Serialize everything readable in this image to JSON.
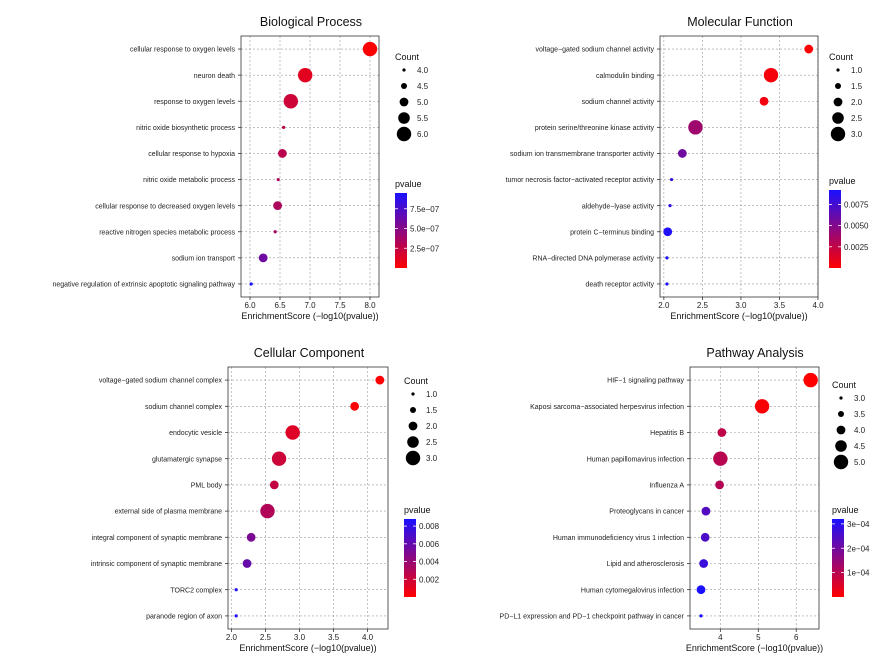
{
  "colors": {
    "low_p": "#ff0000",
    "high_p": "#1a10ff",
    "grid": "#9a9a9a",
    "axis": "#333333"
  },
  "chart_data": [
    {
      "type": "scatter",
      "title": "Biological Process",
      "xlabel": "EnrichmentScore (−log10(pvalue))",
      "xlim": [
        5.85,
        8.15
      ],
      "xticks": [
        {
          "v": 6.0,
          "label": "6.0"
        },
        {
          "v": 6.5,
          "label": "6.5"
        },
        {
          "v": 7.0,
          "label": "7.0"
        },
        {
          "v": 7.5,
          "label": "7.5"
        },
        {
          "v": 8.0,
          "label": "8.0"
        }
      ],
      "size_legend": {
        "title": "Count",
        "entries": [
          {
            "v": 4.0,
            "label": "4.0"
          },
          {
            "v": 4.5,
            "label": "4.5"
          },
          {
            "v": 5.0,
            "label": "5.0"
          },
          {
            "v": 5.5,
            "label": "5.5"
          },
          {
            "v": 6.0,
            "label": "6.0"
          }
        ]
      },
      "color_legend": {
        "title": "pvalue",
        "range": [
          0,
          9.5e-07
        ],
        "ticks": [
          {
            "v": 7.5e-07,
            "label": "7.5e−07"
          },
          {
            "v": 5e-07,
            "label": "5.0e−07"
          },
          {
            "v": 2.5e-07,
            "label": "2.5e−07"
          }
        ]
      },
      "points": [
        {
          "term": "cellular response to oxygen levels",
          "x": 8.0,
          "count": 6,
          "pvalue": 1e-08
        },
        {
          "term": "neuron death",
          "x": 6.92,
          "count": 6,
          "pvalue": 1.2e-07
        },
        {
          "term": "response to oxygen levels",
          "x": 6.68,
          "count": 6,
          "pvalue": 2.1e-07
        },
        {
          "term": "nitric oxide biosynthetic process",
          "x": 6.56,
          "count": 4,
          "pvalue": 2.75e-07
        },
        {
          "term": "cellular response to hypoxia",
          "x": 6.54,
          "count": 5,
          "pvalue": 2.9e-07
        },
        {
          "term": "nitric oxide metabolic process",
          "x": 6.47,
          "count": 4,
          "pvalue": 3.4e-07
        },
        {
          "term": "cellular response to decreased oxygen levels",
          "x": 6.46,
          "count": 5,
          "pvalue": 3.45e-07
        },
        {
          "term": "reactive nitrogen species metabolic process",
          "x": 6.42,
          "count": 4,
          "pvalue": 3.8e-07
        },
        {
          "term": "sodium ion transport",
          "x": 6.22,
          "count": 5,
          "pvalue": 6e-07
        },
        {
          "term": "negative regulation of extrinsic apoptotic signaling pathway",
          "x": 6.02,
          "count": 4,
          "pvalue": 9.5e-07
        }
      ]
    },
    {
      "type": "scatter",
      "title": "Molecular Function",
      "xlabel": "EnrichmentScore (−log10(pvalue))",
      "xlim": [
        1.95,
        4.0
      ],
      "xticks": [
        {
          "v": 2.0,
          "label": "2.0"
        },
        {
          "v": 2.5,
          "label": "2.5"
        },
        {
          "v": 3.0,
          "label": "3.0"
        },
        {
          "v": 3.5,
          "label": "3.5"
        },
        {
          "v": 4.0,
          "label": "4.0"
        }
      ],
      "size_legend": {
        "title": "Count",
        "entries": [
          {
            "v": 1.0,
            "label": "1.0"
          },
          {
            "v": 1.5,
            "label": "1.5"
          },
          {
            "v": 2.0,
            "label": "2.0"
          },
          {
            "v": 2.5,
            "label": "2.5"
          },
          {
            "v": 3.0,
            "label": "3.0"
          }
        ]
      },
      "color_legend": {
        "title": "pvalue",
        "range": [
          0,
          0.0092
        ],
        "ticks": [
          {
            "v": 0.0075,
            "label": "0.0075"
          },
          {
            "v": 0.005,
            "label": "0.0050"
          },
          {
            "v": 0.0025,
            "label": "0.0025"
          }
        ]
      },
      "points": [
        {
          "term": "voltage−gated sodium channel activity",
          "x": 3.88,
          "count": 2,
          "pvalue": 0.00013
        },
        {
          "term": "calmodulin binding",
          "x": 3.39,
          "count": 3,
          "pvalue": 0.0004
        },
        {
          "term": "sodium channel activity",
          "x": 3.3,
          "count": 2,
          "pvalue": 0.0005
        },
        {
          "term": "protein serine/threonine kinase activity",
          "x": 2.41,
          "count": 3,
          "pvalue": 0.0039
        },
        {
          "term": "sodium ion transmembrane transporter activity",
          "x": 2.24,
          "count": 2,
          "pvalue": 0.0058
        },
        {
          "term": "tumor necrosis factor−activated receptor activity",
          "x": 2.1,
          "count": 1,
          "pvalue": 0.0079
        },
        {
          "term": "aldehyde−lyase activity",
          "x": 2.08,
          "count": 1,
          "pvalue": 0.0083
        },
        {
          "term": "protein C−terminus binding",
          "x": 2.05,
          "count": 2,
          "pvalue": 0.0089
        },
        {
          "term": "RNA−directed DNA polymerase activity",
          "x": 2.04,
          "count": 1,
          "pvalue": 0.0091
        },
        {
          "term": "death receptor activity",
          "x": 2.04,
          "count": 1,
          "pvalue": 0.0091
        }
      ]
    },
    {
      "type": "scatter",
      "title": "Cellular Component",
      "xlabel": "EnrichmentScore (−log10(pvalue))",
      "xlim": [
        1.95,
        4.3
      ],
      "xticks": [
        {
          "v": 2.0,
          "label": "2.0"
        },
        {
          "v": 2.5,
          "label": "2.5"
        },
        {
          "v": 3.0,
          "label": "3.0"
        },
        {
          "v": 3.5,
          "label": "3.5"
        },
        {
          "v": 4.0,
          "label": "4.0"
        }
      ],
      "size_legend": {
        "title": "Count",
        "entries": [
          {
            "v": 1.0,
            "label": "1.0"
          },
          {
            "v": 1.5,
            "label": "1.5"
          },
          {
            "v": 2.0,
            "label": "2.0"
          },
          {
            "v": 2.5,
            "label": "2.5"
          },
          {
            "v": 3.0,
            "label": "3.0"
          }
        ]
      },
      "color_legend": {
        "title": "pvalue",
        "range": [
          0,
          0.0088
        ],
        "ticks": [
          {
            "v": 0.008,
            "label": "0.008"
          },
          {
            "v": 0.006,
            "label": "0.006"
          },
          {
            "v": 0.004,
            "label": "0.004"
          },
          {
            "v": 0.002,
            "label": "0.002"
          }
        ]
      },
      "points": [
        {
          "term": "voltage−gated sodium channel complex",
          "x": 4.18,
          "count": 2,
          "pvalue": 7e-05
        },
        {
          "term": "sodium channel complex",
          "x": 3.81,
          "count": 2,
          "pvalue": 0.00015
        },
        {
          "term": "endocytic vesicle",
          "x": 2.9,
          "count": 3,
          "pvalue": 0.0013
        },
        {
          "term": "glutamatergic synapse",
          "x": 2.7,
          "count": 3,
          "pvalue": 0.002
        },
        {
          "term": "PML body",
          "x": 2.63,
          "count": 2,
          "pvalue": 0.0023
        },
        {
          "term": "external side of plasma membrane",
          "x": 2.53,
          "count": 3,
          "pvalue": 0.003
        },
        {
          "term": "integral component of synaptic membrane",
          "x": 2.29,
          "count": 2,
          "pvalue": 0.0051
        },
        {
          "term": "intrinsic component of synaptic membrane",
          "x": 2.23,
          "count": 2,
          "pvalue": 0.0059
        },
        {
          "term": "TORC2 complex",
          "x": 2.07,
          "count": 1,
          "pvalue": 0.0085
        },
        {
          "term": "paranode region of axon",
          "x": 2.07,
          "count": 1,
          "pvalue": 0.0085
        }
      ]
    },
    {
      "type": "scatter",
      "title": "Pathway Analysis",
      "xlabel": "EnrichmentScore (−log10(pvalue))",
      "xlim": [
        3.2,
        6.6
      ],
      "xticks": [
        {
          "v": 4.0,
          "label": "4"
        },
        {
          "v": 5.0,
          "label": "5"
        },
        {
          "v": 6.0,
          "label": "6"
        }
      ],
      "size_legend": {
        "title": "Count",
        "entries": [
          {
            "v": 3.0,
            "label": "3.0"
          },
          {
            "v": 3.5,
            "label": "3.5"
          },
          {
            "v": 4.0,
            "label": "4.0"
          },
          {
            "v": 4.5,
            "label": "4.5"
          },
          {
            "v": 5.0,
            "label": "5.0"
          }
        ]
      },
      "color_legend": {
        "title": "pvalue",
        "range": [
          0,
          0.00032
        ],
        "ticks": [
          {
            "v": 0.0003,
            "label": "3e−04"
          },
          {
            "v": 0.0002,
            "label": "2e−04"
          },
          {
            "v": 0.0001,
            "label": "1e−04"
          }
        ]
      },
      "points": [
        {
          "term": "HIF−1 signaling pathway",
          "x": 6.38,
          "count": 5,
          "pvalue": 4e-07
        },
        {
          "term": "Kaposi sarcoma−associated herpesvirus infection",
          "x": 5.1,
          "count": 5,
          "pvalue": 8e-06
        },
        {
          "term": "Hepatitis B",
          "x": 4.04,
          "count": 4,
          "pvalue": 9e-05
        },
        {
          "term": "Human papillomavirus infection",
          "x": 4.0,
          "count": 5,
          "pvalue": 0.0001
        },
        {
          "term": "Influenza A",
          "x": 3.98,
          "count": 4,
          "pvalue": 0.000105
        },
        {
          "term": "Proteoglycans in cancer",
          "x": 3.62,
          "count": 4,
          "pvalue": 0.00024
        },
        {
          "term": "Human immunodeficiency virus 1 infection",
          "x": 3.6,
          "count": 4,
          "pvalue": 0.00025
        },
        {
          "term": "Lipid and atherosclerosis",
          "x": 3.56,
          "count": 4,
          "pvalue": 0.000275
        },
        {
          "term": "Human cytomegalovirus infection",
          "x": 3.49,
          "count": 4,
          "pvalue": 0.00032
        },
        {
          "term": "PD−L1 expression and PD−1 checkpoint pathway in cancer",
          "x": 3.49,
          "count": 3,
          "pvalue": 0.00032
        }
      ]
    }
  ]
}
